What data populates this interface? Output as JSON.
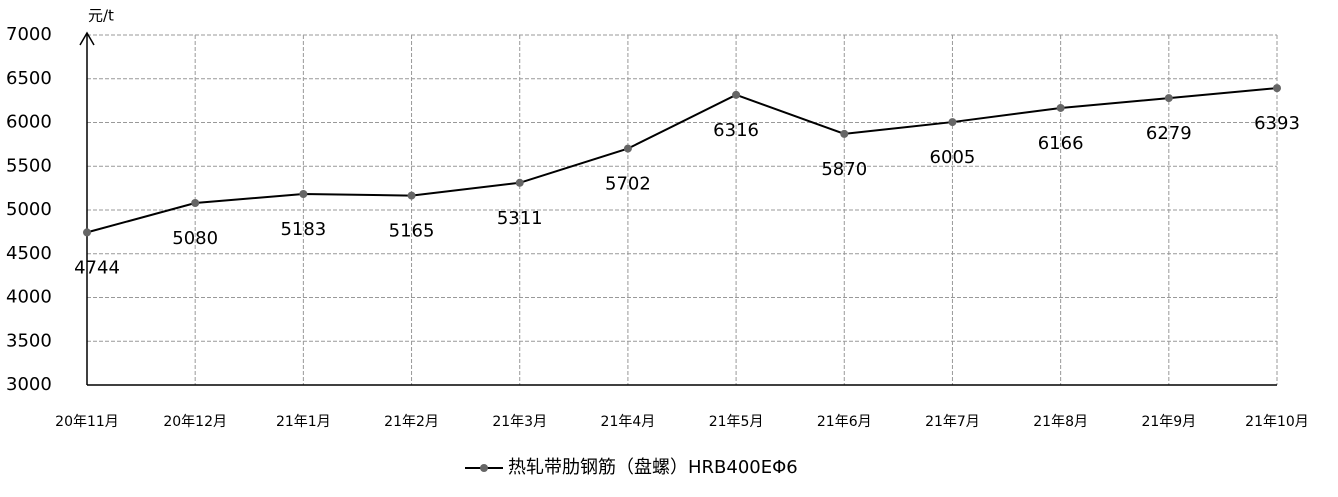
{
  "chart_data": {
    "type": "line",
    "y_axis_label": "元/t",
    "categories": [
      "20年11月",
      "20年12月",
      "21年1月",
      "21年2月",
      "21年3月",
      "21年4月",
      "21年5月",
      "21年6月",
      "21年7月",
      "21年8月",
      "21年9月",
      "21年10月"
    ],
    "series": [
      {
        "name": "热轧带肋钢筋（盘螺）HRB400EΦ6",
        "color": "#000000",
        "marker_color": "#666666",
        "values": [
          4744,
          5080,
          5183,
          5165,
          5311,
          5702,
          6316,
          5870,
          6005,
          6166,
          6279,
          6393
        ]
      }
    ],
    "ylim": [
      3000,
      7000
    ],
    "yticks": [
      3000,
      3500,
      4000,
      4500,
      5000,
      5500,
      6000,
      6500,
      7000
    ],
    "grid": true,
    "legend": "bottom"
  }
}
